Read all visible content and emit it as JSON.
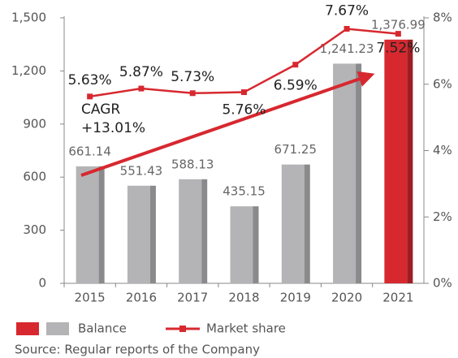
{
  "chart_data": {
    "type": "bar_line",
    "categories": [
      "2015",
      "2016",
      "2017",
      "2018",
      "2019",
      "2020",
      "2021"
    ],
    "series": [
      {
        "name": "Balance",
        "color": "#b4b4b6",
        "highlight_color": "#d7282f",
        "highlight": "2021",
        "values": [
          661.14,
          551.43,
          588.13,
          435.15,
          671.25,
          1241.23,
          1376.99
        ],
        "value_labels": [
          "661.14",
          "551.43",
          "588.13",
          "435.15",
          "671.25",
          "1,241.23",
          "1,376.99"
        ]
      },
      {
        "name": "Market share",
        "color": "#d7282f",
        "axis": "y2",
        "values": [
          5.63,
          5.87,
          5.73,
          5.76,
          6.59,
          7.67,
          7.52
        ],
        "value_labels": [
          "5.63%",
          "5.87%",
          "5.73%",
          "5.76%",
          "6.59%",
          "7.67%",
          "7.52%"
        ]
      }
    ],
    "ylim": [
      0,
      1500
    ],
    "yticks": [
      0,
      300,
      600,
      900,
      {
        "value": 1200,
        "label": "1,200"
      },
      {
        "value": 1500,
        "label": "1,500"
      }
    ],
    "y2lim": [
      0,
      8
    ],
    "y2ticks": [
      {
        "value": 0,
        "label": "0%"
      },
      {
        "value": 2,
        "label": "2%"
      },
      {
        "value": 4,
        "label": "4%"
      },
      {
        "value": 6,
        "label": "6%"
      },
      {
        "value": 8,
        "label": "8%"
      }
    ],
    "annotations": [
      "CAGR",
      "+13.01%"
    ],
    "source": "Source: Regular reports of the Company"
  }
}
